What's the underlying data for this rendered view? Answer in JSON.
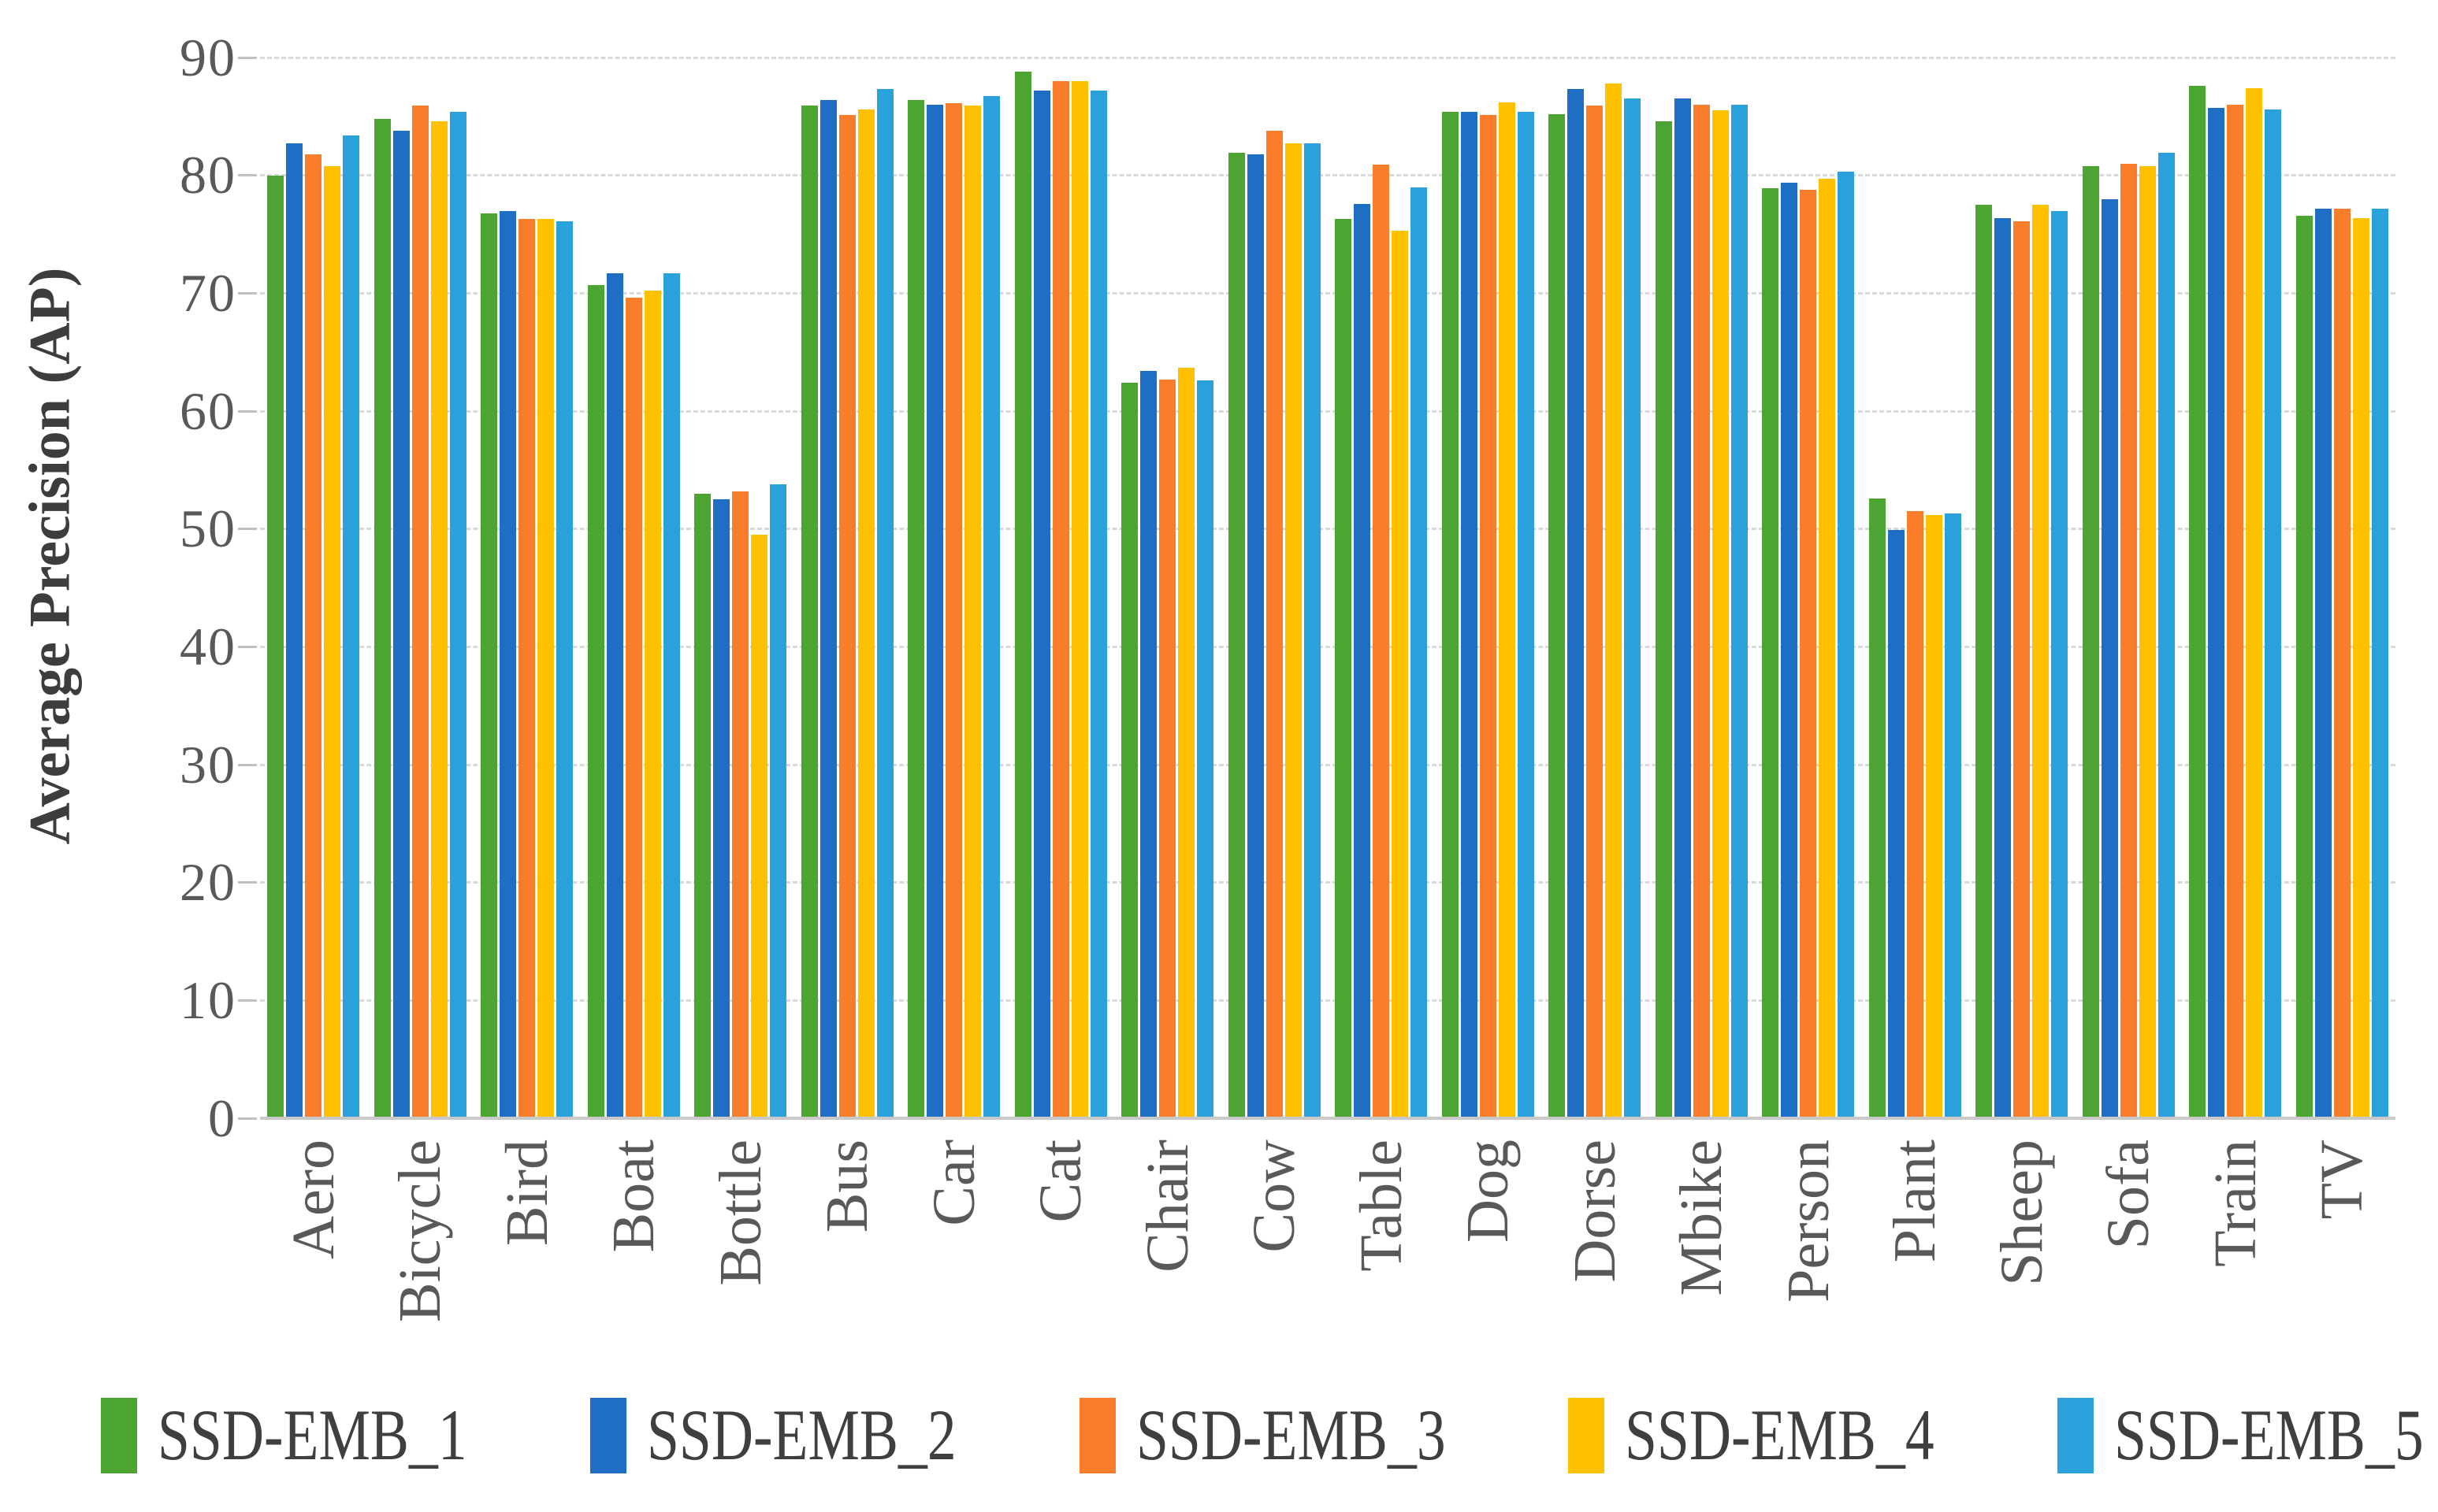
{
  "chart_data": {
    "type": "bar",
    "title": "",
    "xlabel": "",
    "ylabel": "Average Precision (AP)",
    "ylim": [
      0,
      90
    ],
    "yticks": [
      0,
      10,
      20,
      30,
      40,
      50,
      60,
      70,
      80,
      90
    ],
    "grid": "horizontal-dashed",
    "legend_position": "bottom",
    "categories": [
      "Aero",
      "Bicycle",
      "Bird",
      "Boat",
      "Bottle",
      "Bus",
      "Car",
      "Cat",
      "Chair",
      "Cow",
      "Table",
      "Dog",
      "Dorse",
      "Mbike",
      "Person",
      "Plant",
      "Sheep",
      "Sofa",
      "Train",
      "TV"
    ],
    "series": [
      {
        "name": "SSD-EMB_1",
        "color": "#4ca433",
        "values": [
          80.0,
          84.8,
          76.8,
          70.7,
          53.0,
          85.9,
          86.4,
          88.8,
          62.4,
          81.9,
          76.3,
          85.4,
          85.2,
          84.6,
          78.9,
          52.6,
          77.5,
          80.8,
          87.6,
          76.6
        ]
      },
      {
        "name": "SSD-EMB_2",
        "color": "#1e6fc4",
        "values": [
          82.7,
          83.8,
          77.0,
          71.7,
          52.5,
          86.4,
          86.0,
          87.2,
          63.4,
          81.8,
          77.6,
          85.4,
          87.3,
          86.5,
          79.4,
          49.9,
          76.4,
          78.0,
          85.7,
          77.2
        ]
      },
      {
        "name": "SSD-EMB_3",
        "color": "#f97d2b",
        "values": [
          81.8,
          85.9,
          76.3,
          69.6,
          53.2,
          85.1,
          86.1,
          88.0,
          62.7,
          83.8,
          80.9,
          85.1,
          85.9,
          86.0,
          78.8,
          51.5,
          76.1,
          81.0,
          86.0,
          77.2
        ]
      },
      {
        "name": "SSD-EMB_4",
        "color": "#ffc000",
        "values": [
          80.8,
          84.6,
          76.3,
          70.2,
          49.5,
          85.6,
          85.9,
          88.0,
          63.7,
          82.7,
          75.3,
          86.2,
          87.8,
          85.5,
          79.7,
          51.2,
          77.5,
          80.8,
          87.4,
          76.4
        ]
      },
      {
        "name": "SSD-EMB_5",
        "color": "#2ba1db",
        "values": [
          83.4,
          85.4,
          76.1,
          71.7,
          53.8,
          87.3,
          86.7,
          87.2,
          62.6,
          82.7,
          79.0,
          85.4,
          86.5,
          86.0,
          80.3,
          51.3,
          77.0,
          81.9,
          85.6,
          77.2
        ]
      }
    ]
  }
}
